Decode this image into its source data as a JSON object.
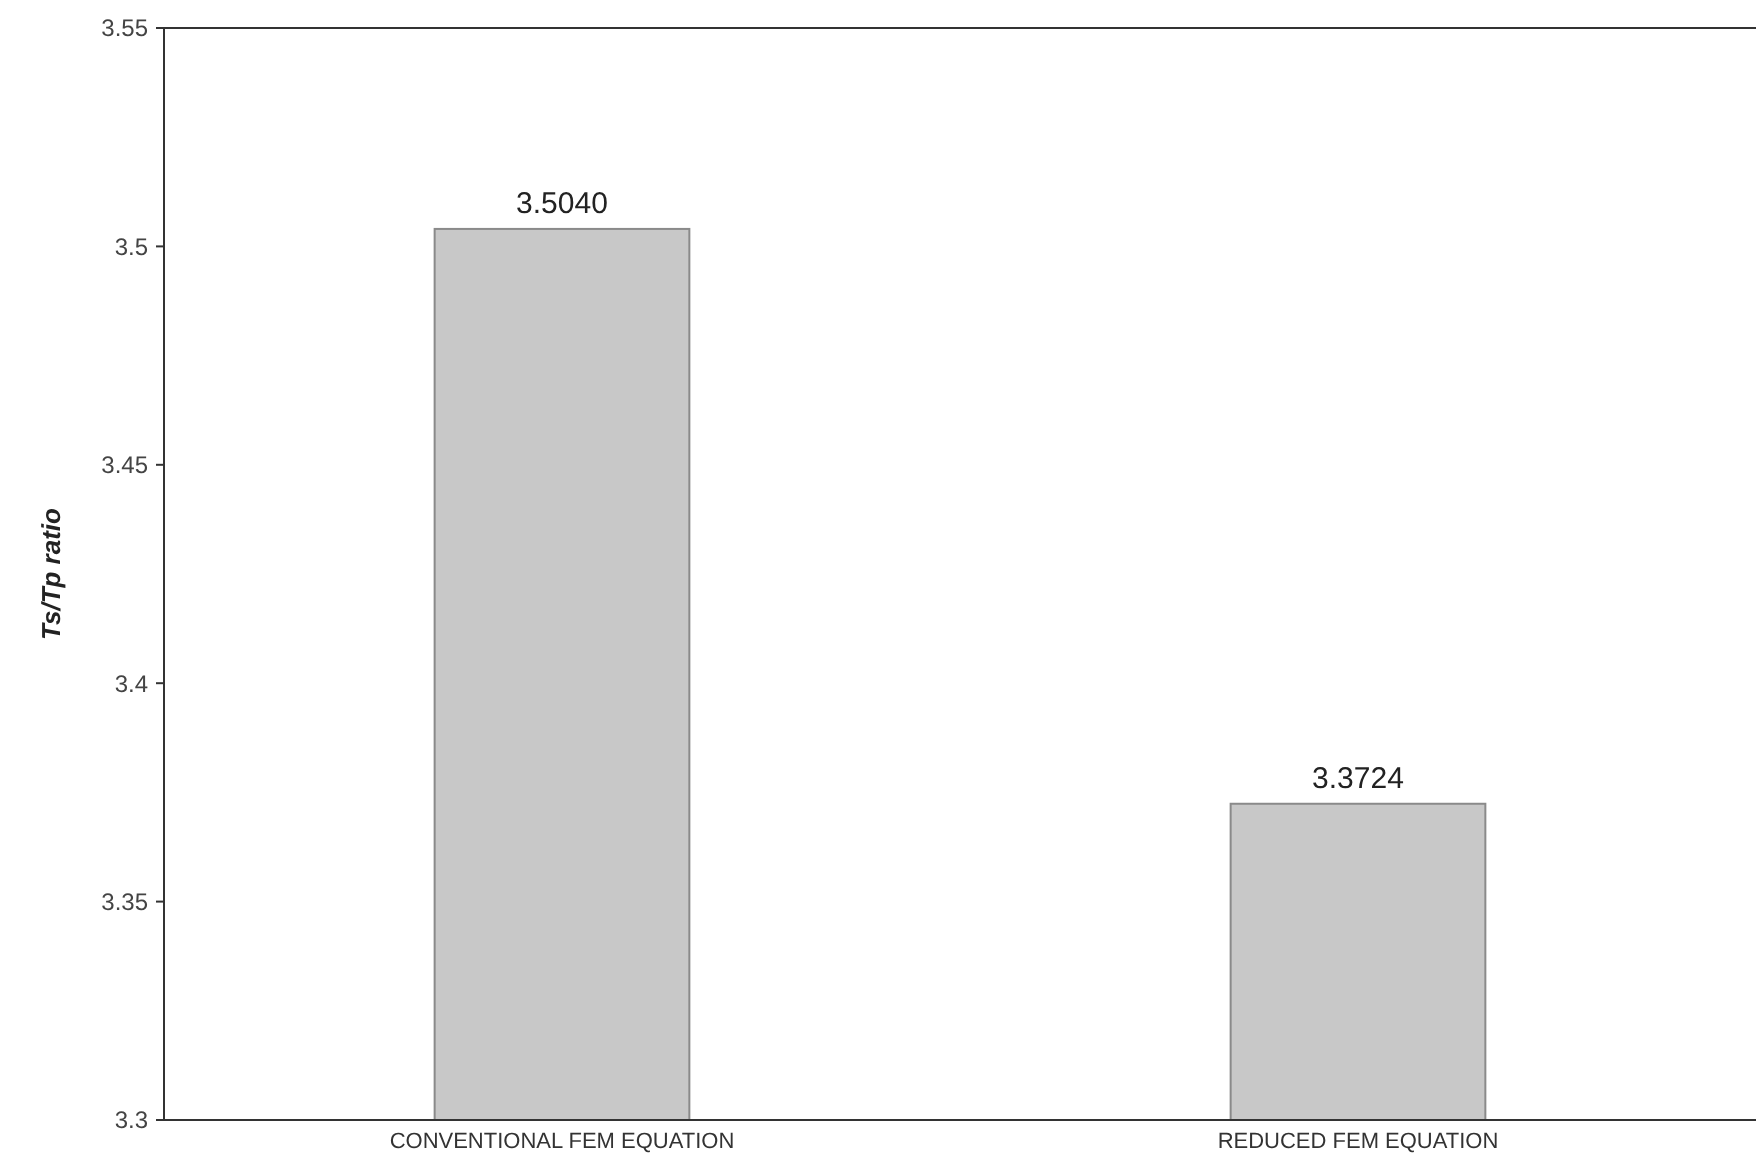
{
  "chart_data": {
    "type": "bar",
    "ylabel": "Ts/Tp ratio",
    "categories": [
      "CONVENTIONAL FEM EQUATION",
      "REDUCED FEM EQUATION"
    ],
    "values": [
      3.504,
      3.3724
    ],
    "value_labels": [
      "3.5040",
      "3.3724"
    ],
    "color": "#c8c8c8",
    "ylim": [
      3.3,
      3.55
    ],
    "yticks": [
      3.3,
      3.35,
      3.4,
      3.45,
      3.5,
      3.55
    ],
    "grid": false
  }
}
